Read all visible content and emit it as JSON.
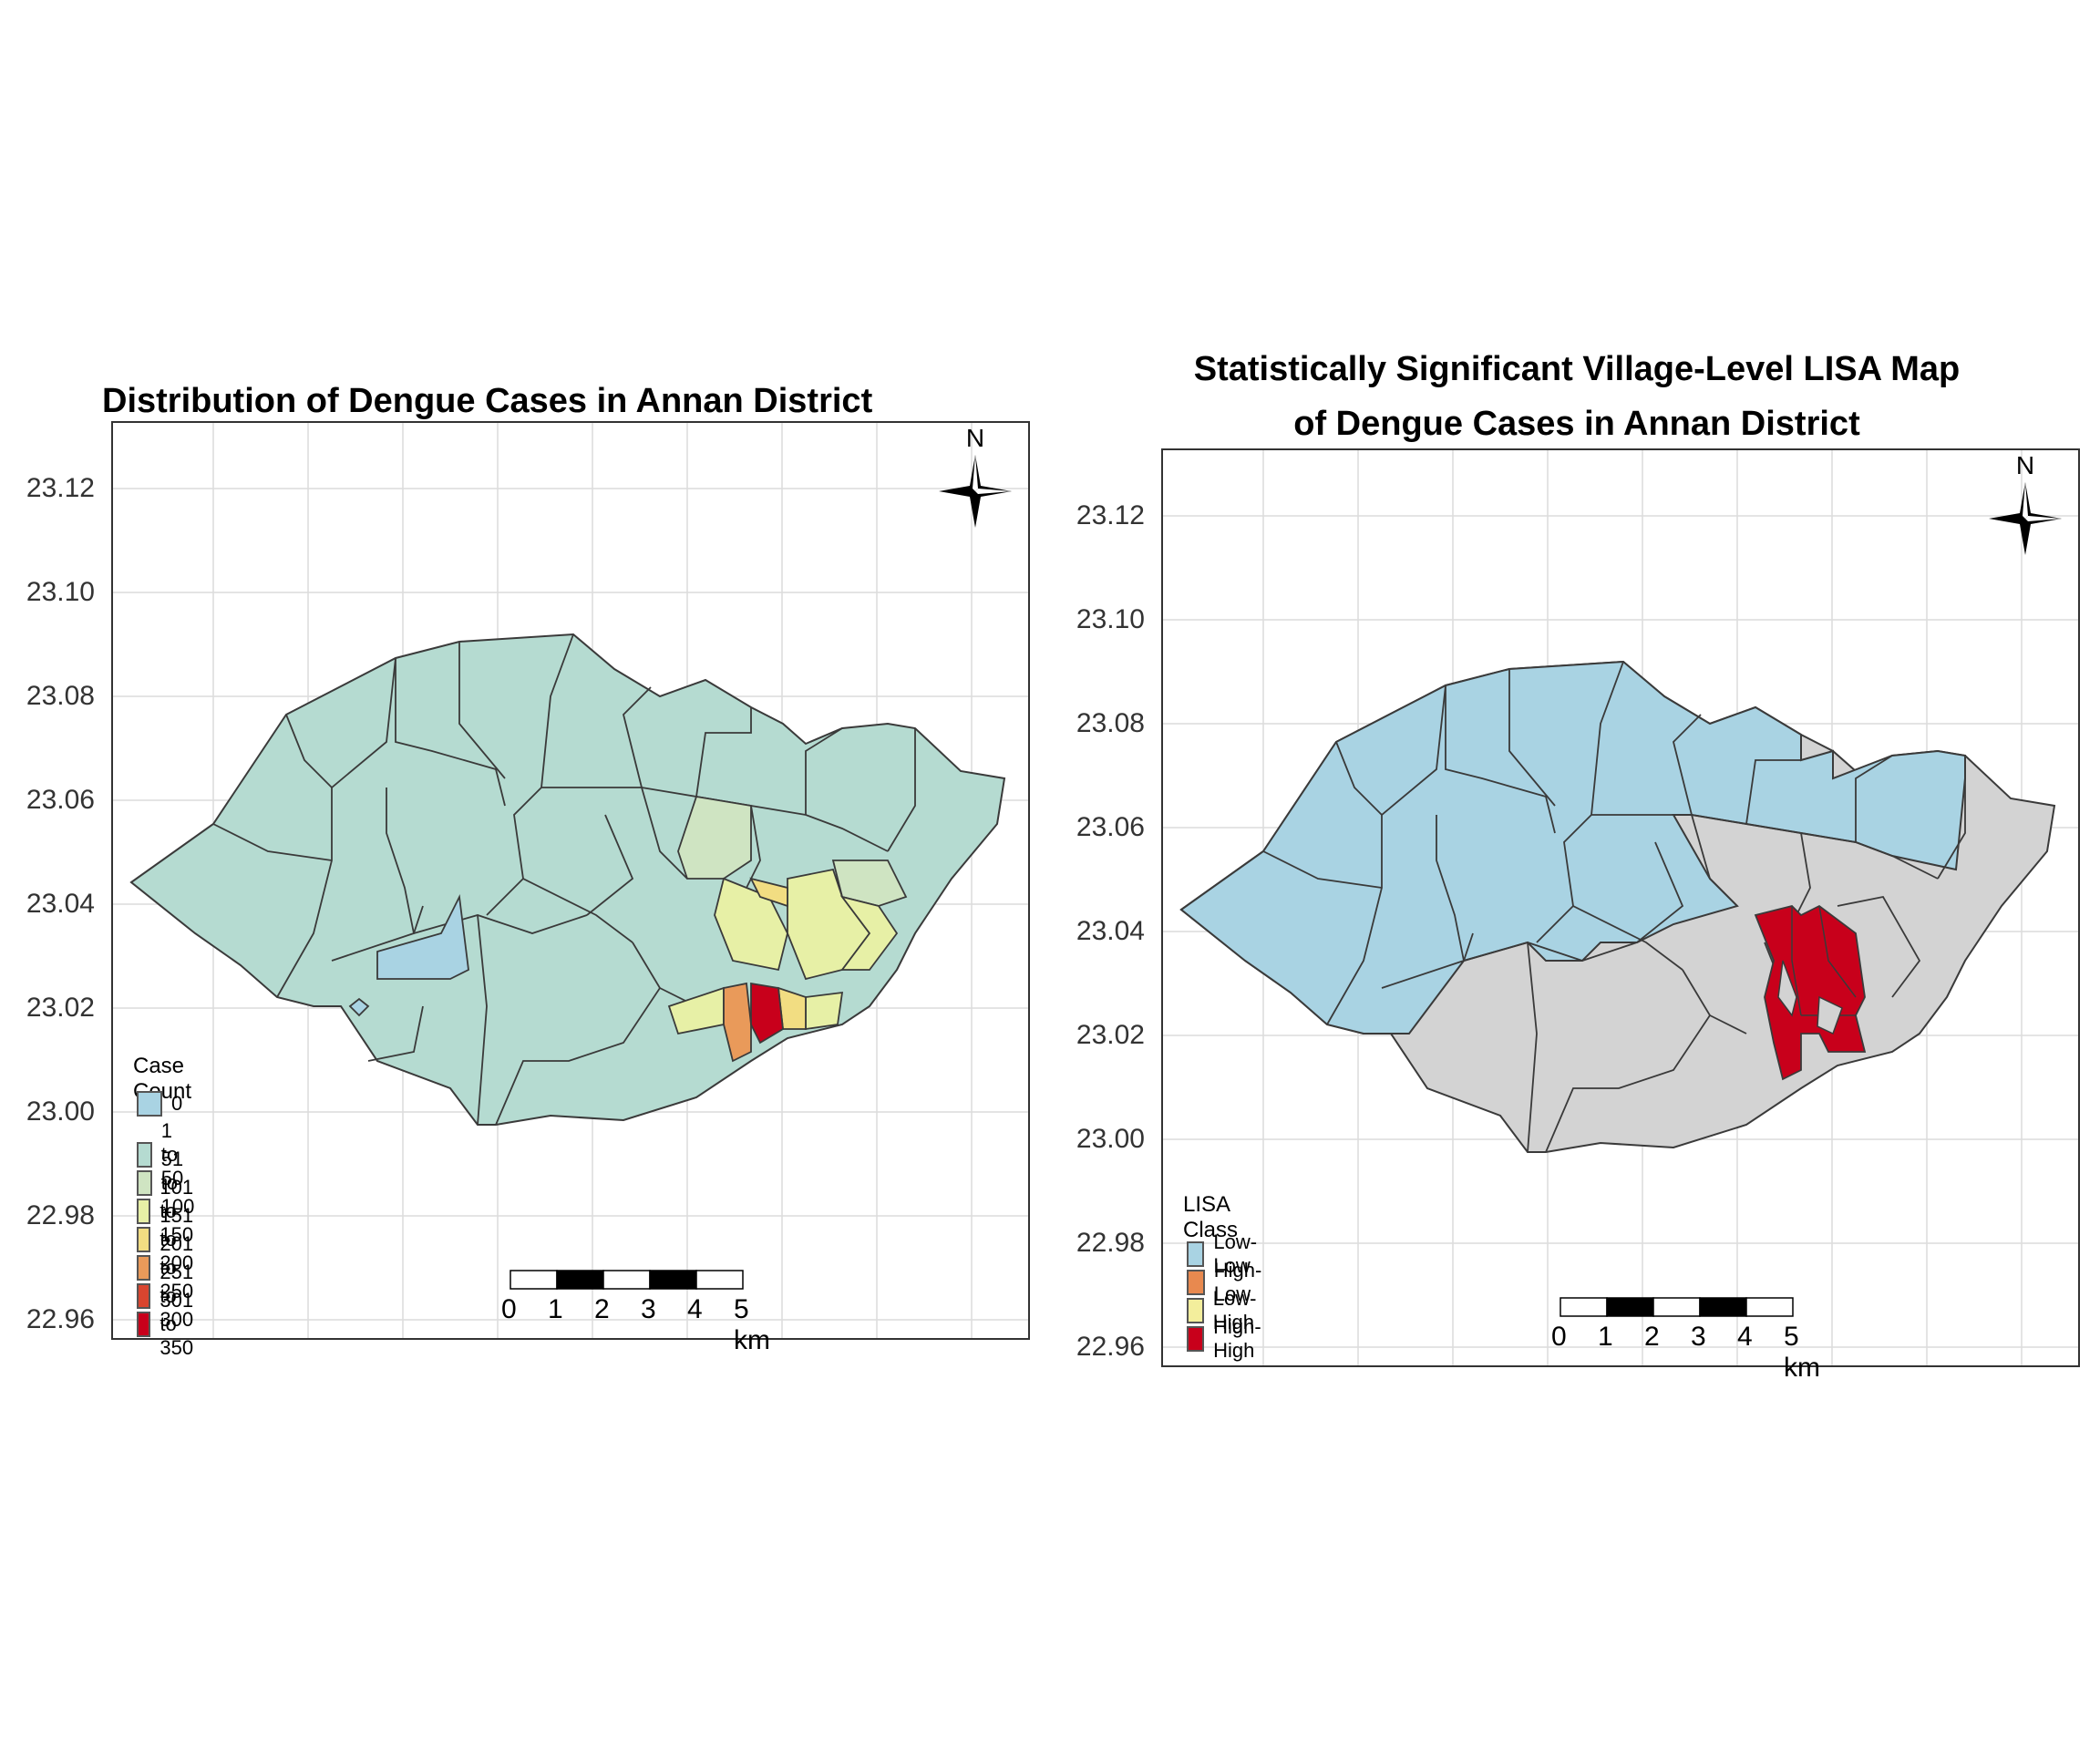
{
  "left_map": {
    "title": "Distribution of Dengue Cases in Annan District",
    "y_ticks": [
      "23.12",
      "23.10",
      "23.08",
      "23.06",
      "23.04",
      "23.02",
      "23.00",
      "22.98",
      "22.96"
    ],
    "north_label": "N",
    "legend": {
      "title": "Case Count",
      "items": [
        {
          "label": "0",
          "color": "#a9d3e3"
        },
        {
          "label": "1 to 50",
          "color": "#b5dbd1"
        },
        {
          "label": "51 to 100",
          "color": "#cfe4c2"
        },
        {
          "label": "101 to 150",
          "color": "#e7f0a6"
        },
        {
          "label": "151 to 200",
          "color": "#f2dd82"
        },
        {
          "label": "201 to 250",
          "color": "#e99a5a"
        },
        {
          "label": "251 to 300",
          "color": "#d9452f"
        },
        {
          "label": "301 to 350",
          "color": "#c8001b"
        }
      ]
    },
    "scale": [
      "0",
      "1",
      "2",
      "3",
      "4",
      "5 km"
    ]
  },
  "right_map": {
    "title_line1": "Statistically Significant Village-Level LISA Map",
    "title_line2": "of Dengue Cases in Annan District",
    "y_ticks": [
      "23.12",
      "23.10",
      "23.08",
      "23.06",
      "23.04",
      "23.02",
      "23.00",
      "22.98",
      "22.96"
    ],
    "north_label": "N",
    "legend": {
      "title": "LISA Class",
      "items": [
        {
          "label": "Low-Low",
          "color": "#a9d3e3"
        },
        {
          "label": "High-Low",
          "color": "#e8894f"
        },
        {
          "label": "Low-High",
          "color": "#f3ee9c"
        },
        {
          "label": "High-High",
          "color": "#c8001b"
        }
      ]
    },
    "scale": [
      "0",
      "1",
      "2",
      "3",
      "4",
      "5 km"
    ]
  }
}
